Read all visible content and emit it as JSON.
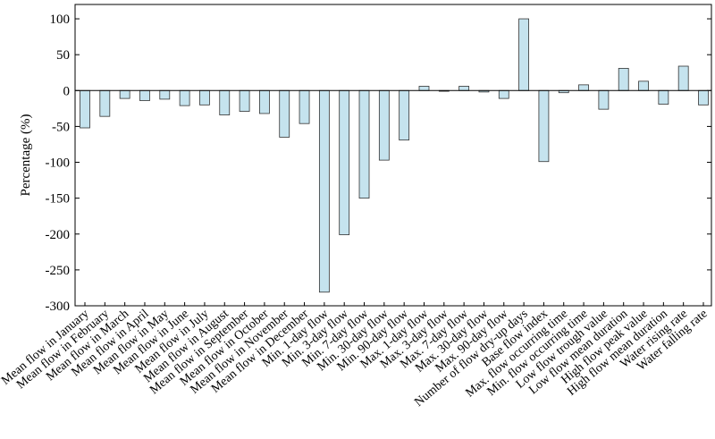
{
  "chart_data": {
    "type": "bar",
    "title": "",
    "xlabel": "",
    "ylabel": "Percentage (%)",
    "ylim": [
      -300,
      120
    ],
    "yticks": [
      100,
      50,
      0,
      -50,
      -100,
      -150,
      -200,
      -250,
      -300
    ],
    "grid": false,
    "categories": [
      "Mean flow in January",
      "Mean flow in February",
      "Mean flow in March",
      "Mean flow in April",
      "Mean flow in May",
      "Mean flow in June",
      "Mean flow in July",
      "Mean flow in August",
      "Mean flow in September",
      "Mean flow in October",
      "Mean flow in November",
      "Mean flow in December",
      "Min. 1-day flow",
      "Min. 3-day flow",
      "Min. 7-day flow",
      "Min. 30-day flow",
      "Min. 90-day flow",
      "Max. 1-day flow",
      "Max. 3-day flow",
      "Max. 7-day flow",
      "Max. 30-day flow",
      "Max. 90-day flow",
      "Number of flow dry-up days",
      "Base flow index",
      "Max. flow occurring time",
      "Min. flow occurring time",
      "Low flow trough value",
      "Low flow mean duration",
      "High flow peak value",
      "High flow mean duration",
      "Water rising rate",
      "Water falling rate"
    ],
    "values": [
      -52,
      -36,
      -11,
      -14,
      -12,
      -21,
      -20,
      -34,
      -29,
      -32,
      -65,
      -46,
      -281,
      -201,
      -150,
      -97,
      -69,
      6,
      -1,
      6,
      -2,
      -11,
      100,
      -99,
      -3,
      8,
      -26,
      31,
      13,
      -19,
      34,
      -20
    ],
    "bar_color": "#c5e3ee",
    "bar_edge_color": "#333333"
  }
}
